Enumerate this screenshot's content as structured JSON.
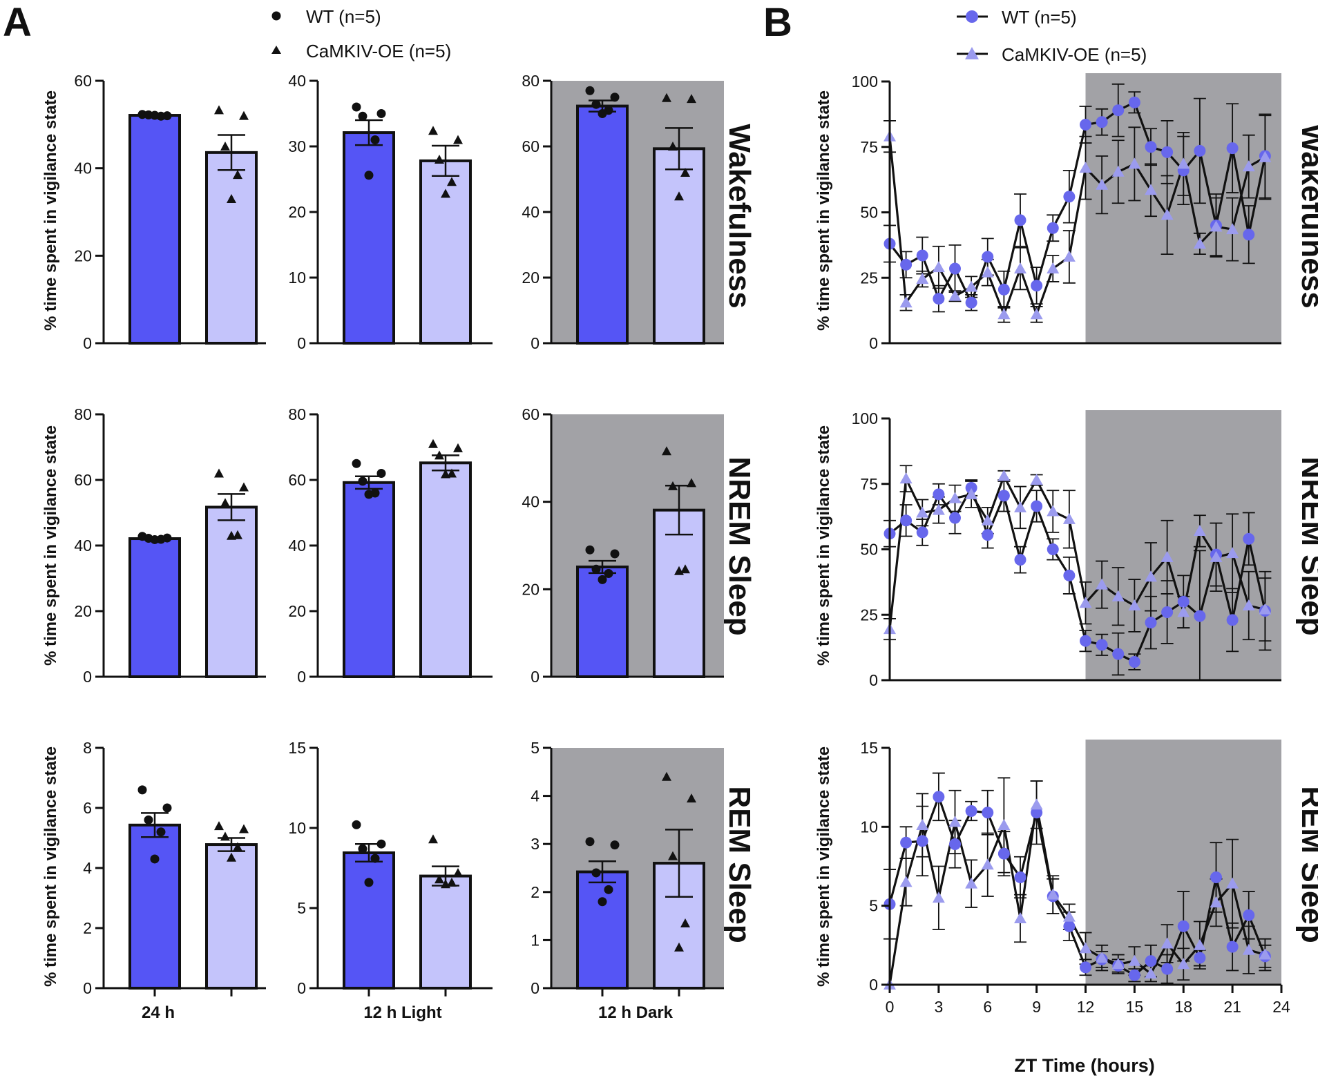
{
  "figure": {
    "panel_a": "A",
    "panel_b": "B"
  },
  "legend_a": {
    "wt": "WT (n=5)",
    "oe": "CaMKIV-OE (n=5)"
  },
  "legend_b": {
    "wt": "WT (n=5)",
    "oe": "CaMKIV-OE (n=5)"
  },
  "colors": {
    "wt_bar": "#5555f5",
    "oe_bar": "#c4c4fb",
    "dark_shade": "#a2a2a6",
    "wt_line_marker": "#6767ec",
    "oe_line_marker": "#9b9bee",
    "ink": "#111111"
  },
  "row_labels": [
    "Wakefulness",
    "NREM Sleep",
    "REM Sleep"
  ],
  "y_axis_label": "% time spent in vigilance state",
  "x_axis_label_b": "ZT Time (hours)",
  "chart_data": [
    {
      "type": "bar",
      "panel": "A",
      "row_labels": [
        "Wakefulness",
        "NREM Sleep",
        "REM Sleep"
      ],
      "col_labels": [
        "24 h",
        "12 h Light",
        "12 h Dark"
      ],
      "series": [
        "WT (n=5)",
        "CaMKIV-OE (n=5)"
      ],
      "shaded_columns": [
        "12 h Dark"
      ],
      "cells": [
        [
          {
            "ylim": [
              0,
              60
            ],
            "ticks": [
              0,
              20,
              40,
              60
            ],
            "bars": [
              {
                "series": "WT (n=5)",
                "mean": 52.1,
                "sem": 0.3,
                "points": [
                  52.3,
                  52.0,
                  52.2,
                  51.9,
                  52.1
                ]
              },
              {
                "series": "CaMKIV-OE (n=5)",
                "mean": 43.6,
                "sem": 4.0,
                "points": [
                  53.3,
                  52.0,
                  45.0,
                  38.5,
                  33.0
                ]
              }
            ]
          },
          {
            "ylim": [
              0,
              40
            ],
            "ticks": [
              0,
              10,
              20,
              30,
              40
            ],
            "bars": [
              {
                "series": "WT (n=5)",
                "mean": 32.1,
                "sem": 1.9,
                "points": [
                  36.0,
                  35.0,
                  34.6,
                  31.0,
                  25.6
                ]
              },
              {
                "series": "CaMKIV-OE (n=5)",
                "mean": 27.8,
                "sem": 2.3,
                "points": [
                  32.4,
                  31.0,
                  28.0,
                  24.6,
                  22.8
                ]
              }
            ]
          },
          {
            "ylim": [
              0,
              80
            ],
            "ticks": [
              0,
              20,
              40,
              60,
              80
            ],
            "bars": [
              {
                "series": "WT (n=5)",
                "mean": 72.3,
                "sem": 1.7,
                "points": [
                  77.0,
                  75.0,
                  72.8,
                  71.0,
                  70.0
                ]
              },
              {
                "series": "CaMKIV-OE (n=5)",
                "mean": 59.3,
                "sem": 6.3,
                "points": [
                  74.8,
                  74.5,
                  60.0,
                  52.0,
                  44.8
                ]
              }
            ]
          }
        ],
        [
          {
            "ylim": [
              0,
              80
            ],
            "ticks": [
              0,
              20,
              40,
              60,
              80
            ],
            "bars": [
              {
                "series": "WT (n=5)",
                "mean": 42.1,
                "sem": 0.3,
                "points": [
                  42.8,
                  42.3,
                  42.2,
                  41.9,
                  41.8
                ]
              },
              {
                "series": "CaMKIV-OE (n=5)",
                "mean": 51.7,
                "sem": 4.0,
                "points": [
                  62.0,
                  57.8,
                  53.0,
                  43.2,
                  43.0
                ]
              }
            ]
          },
          {
            "ylim": [
              0,
              80
            ],
            "ticks": [
              0,
              20,
              40,
              60,
              80
            ],
            "bars": [
              {
                "series": "WT (n=5)",
                "mean": 59.2,
                "sem": 1.9,
                "points": [
                  65.0,
                  62.0,
                  59.6,
                  56.0,
                  55.6
                ]
              },
              {
                "series": "CaMKIV-OE (n=5)",
                "mean": 65.2,
                "sem": 2.3,
                "points": [
                  71.0,
                  69.7,
                  67.5,
                  62.0,
                  61.8
                ]
              }
            ]
          },
          {
            "ylim": [
              0,
              60
            ],
            "ticks": [
              0,
              20,
              40,
              60
            ],
            "bars": [
              {
                "series": "WT (n=5)",
                "mean": 25.1,
                "sem": 1.4,
                "points": [
                  29.0,
                  28.1,
                  24.6,
                  23.6,
                  22.2
                ]
              },
              {
                "series": "CaMKIV-OE (n=5)",
                "mean": 38.1,
                "sem": 5.6,
                "points": [
                  51.6,
                  44.3,
                  43.6,
                  24.6,
                  24.2
                ]
              }
            ]
          }
        ],
        [
          {
            "ylim": [
              0,
              8
            ],
            "ticks": [
              0,
              2,
              4,
              6,
              8
            ],
            "bars": [
              {
                "series": "WT (n=5)",
                "mean": 5.43,
                "sem": 0.4,
                "points": [
                  6.6,
                  6.0,
                  5.6,
                  5.2,
                  4.3
                ]
              },
              {
                "series": "CaMKIV-OE (n=5)",
                "mean": 4.78,
                "sem": 0.22,
                "points": [
                  5.4,
                  5.3,
                  5.05,
                  4.7,
                  4.35
                ]
              }
            ]
          },
          {
            "ylim": [
              0,
              15
            ],
            "ticks": [
              0,
              5,
              10,
              15
            ],
            "bars": [
              {
                "series": "WT (n=5)",
                "mean": 8.45,
                "sem": 0.55,
                "points": [
                  10.2,
                  9.0,
                  8.7,
                  8.1,
                  6.6
                ]
              },
              {
                "series": "CaMKIV-OE (n=5)",
                "mean": 7.0,
                "sem": 0.6,
                "points": [
                  9.3,
                  7.2,
                  6.8,
                  6.6,
                  6.5
                ]
              }
            ]
          },
          {
            "ylim": [
              0,
              5
            ],
            "ticks": [
              0,
              1,
              2,
              3,
              4,
              5
            ],
            "bars": [
              {
                "series": "WT (n=5)",
                "mean": 2.42,
                "sem": 0.22,
                "points": [
                  3.05,
                  2.98,
                  2.4,
                  2.05,
                  1.8
                ]
              },
              {
                "series": "CaMKIV-OE (n=5)",
                "mean": 2.6,
                "sem": 0.7,
                "points": [
                  4.4,
                  3.95,
                  2.75,
                  1.35,
                  0.85
                ]
              }
            ]
          }
        ]
      ]
    },
    {
      "type": "line",
      "panel": "B",
      "xlabel": "ZT Time (hours)",
      "xlim": [
        0,
        24
      ],
      "xticks": [
        0,
        3,
        6,
        9,
        12,
        15,
        18,
        21,
        24
      ],
      "shaded_range": [
        12,
        24
      ],
      "x": [
        0,
        1,
        2,
        3,
        4,
        5,
        6,
        7,
        8,
        9,
        10,
        11,
        12,
        13,
        14,
        15,
        16,
        17,
        18,
        19,
        20,
        21,
        22,
        23
      ],
      "rows": [
        {
          "label": "Wakefulness",
          "ylim": [
            0,
            100
          ],
          "yticks": [
            0,
            25,
            50,
            75,
            100
          ],
          "series": [
            {
              "name": "WT (n=5)",
              "values": [
                38,
                30,
                33.5,
                17,
                28.5,
                15.5,
                33,
                20.5,
                47,
                22,
                44,
                56,
                83.5,
                84.5,
                89,
                92,
                75,
                73,
                66,
                73.5,
                45,
                74.5,
                41.5,
                71.5
              ],
              "err": [
                7,
                5,
                7,
                5,
                9,
                3,
                7,
                7,
                10,
                7,
                5,
                10,
                7,
                5,
                10,
                4,
                7,
                12,
                13,
                20,
                12,
                17,
                11,
                16
              ]
            },
            {
              "name": "CaMKIV-OE (n=5)",
              "values": [
                79,
                15.5,
                24.5,
                29,
                18,
                21.5,
                27,
                11,
                28.5,
                11,
                28.5,
                33,
                67,
                60.5,
                65.5,
                68.5,
                58.5,
                49,
                68.5,
                38,
                44.5,
                43.5,
                67.5,
                71
              ],
              "err": [
                6,
                3,
                3,
                8,
                2,
                4,
                5,
                3,
                8,
                3,
                5,
                10,
                12,
                11,
                12,
                14,
                10,
                15,
                12,
                4,
                11,
                12,
                12,
                16
              ]
            }
          ]
        },
        {
          "label": "NREM Sleep",
          "ylim": [
            0,
            100
          ],
          "yticks": [
            0,
            25,
            50,
            75,
            100
          ],
          "series": [
            {
              "name": "WT (n=5)",
              "values": [
                56,
                61,
                56.5,
                71,
                62,
                73.5,
                55.5,
                70.5,
                46,
                66.5,
                50,
                40,
                15,
                13.5,
                10,
                7,
                22,
                26,
                30,
                24.5,
                48,
                23,
                54,
                26.5
              ],
              "err": [
                5,
                6,
                5,
                4,
                6,
                3,
                5,
                6,
                5,
                6,
                4,
                7,
                4,
                4,
                8,
                3,
                10,
                12,
                10,
                25,
                12,
                12,
                10,
                15
              ]
            },
            {
              "name": "CaMKIV-OE (n=5)",
              "values": [
                19.5,
                77,
                64,
                65,
                69.5,
                71,
                61,
                78,
                66,
                76.5,
                64.5,
                61.5,
                29.5,
                36.5,
                32,
                28.5,
                39.5,
                47,
                26,
                57,
                47,
                48.5,
                28.5,
                27
              ],
              "err": [
                4,
                5,
                5,
                5,
                5,
                5,
                5,
                2,
                8,
                2,
                8,
                11,
                8,
                9,
                11,
                10,
                13,
                14,
                6,
                6,
                13,
                15,
                13,
                12
              ]
            }
          ]
        },
        {
          "label": "REM Sleep",
          "ylim": [
            0,
            15
          ],
          "yticks": [
            0,
            5,
            10,
            15
          ],
          "series": [
            {
              "name": "WT (n=5)",
              "values": [
                5.1,
                9.0,
                9.1,
                11.9,
                8.9,
                11.0,
                10.9,
                8.3,
                6.8,
                10.9,
                5.6,
                3.7,
                1.1,
                1.6,
                1.2,
                0.6,
                1.5,
                1.0,
                3.7,
                1.7,
                6.8,
                2.4,
                4.4,
                1.8
              ],
              "err": [
                2.2,
                1.0,
                2.2,
                1.5,
                1.5,
                0.6,
                1.4,
                1.4,
                1.3,
                2.0,
                1.1,
                0.9,
                0.5,
                0.5,
                0.4,
                0.4,
                1.0,
                0.9,
                2.2,
                0.5,
                2.2,
                1.5,
                1.5,
                0.7
              ]
            },
            {
              "name": "CaMKIV-OE (n=5)",
              "values": [
                0.0,
                6.5,
                10.1,
                5.5,
                10.3,
                6.4,
                7.6,
                10.1,
                4.2,
                11.4,
                5.7,
                4.3,
                2.3,
                1.7,
                1.3,
                1.5,
                0.7,
                2.6,
                1.3,
                2.5,
                5.2,
                6.4,
                2.2,
                1.9
              ],
              "err": [
                0,
                1.5,
                2.0,
                2.0,
                2.0,
                1.5,
                2.0,
                3.0,
                1.5,
                1.5,
                1.2,
                0.8,
                1.0,
                0.8,
                0.6,
                0.9,
                0.5,
                1.2,
                1.0,
                1.5,
                1.5,
                2.8,
                1.5,
                1.0
              ]
            }
          ]
        }
      ]
    }
  ]
}
